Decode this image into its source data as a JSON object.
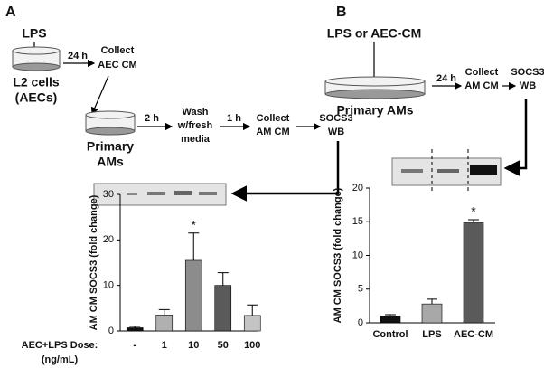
{
  "diagram_a": {
    "panel_label": "A",
    "treatment": "LPS",
    "cells": [
      "L2 cells",
      "(AECs)"
    ],
    "time_1": "24 h",
    "collect_1": [
      "Collect",
      "AEC CM"
    ],
    "cells_2": [
      "Primary",
      "AMs"
    ],
    "time_2": "2 h",
    "wash": [
      "Wash",
      "w/fresh",
      "media"
    ],
    "time_3": "1 h",
    "collect_2": [
      "Collect",
      "AM CM"
    ],
    "readout": [
      "SOCS3",
      "WB"
    ]
  },
  "diagram_b": {
    "panel_label": "B",
    "treatment": "LPS or AEC-CM",
    "cells": "Primary AMs",
    "time_1": "24 h",
    "collect": [
      "Collect",
      "AM CM"
    ],
    "readout": [
      "SOCS3",
      "WB"
    ]
  },
  "chart_data": [
    {
      "type": "bar",
      "y_label": "AM  CM SOCS3 (fold change)",
      "x_label": [
        "AEC+LPS Dose:",
        "(ng/mL)"
      ],
      "categories": [
        "-",
        "1",
        "10",
        "50",
        "100"
      ],
      "values": [
        0.7,
        3.5,
        15.5,
        10,
        3.4
      ],
      "errors": [
        0.3,
        1.2,
        6,
        2.8,
        2.3
      ],
      "colors": [
        "#111111",
        "#b0b0b0",
        "#8c8c8c",
        "#5a5a5a",
        "#c4c4c4"
      ],
      "ylim": [
        0,
        30
      ],
      "yticks": [
        0,
        10,
        20,
        30
      ],
      "annotations": [
        {
          "text": "*",
          "at": "10"
        }
      ]
    },
    {
      "type": "bar",
      "y_label": "AM CM SOCS3 (fold change)",
      "categories": [
        "Control",
        "LPS",
        "AEC-CM"
      ],
      "values": [
        1,
        2.8,
        14.9
      ],
      "errors": [
        0.2,
        0.7,
        0.4
      ],
      "colors": [
        "#111111",
        "#a8a8a8",
        "#5a5a5a"
      ],
      "ylim": [
        0,
        20
      ],
      "yticks": [
        0,
        5,
        10,
        15,
        20
      ],
      "annotations": [
        {
          "text": "*",
          "at": "AEC-CM"
        }
      ]
    }
  ]
}
